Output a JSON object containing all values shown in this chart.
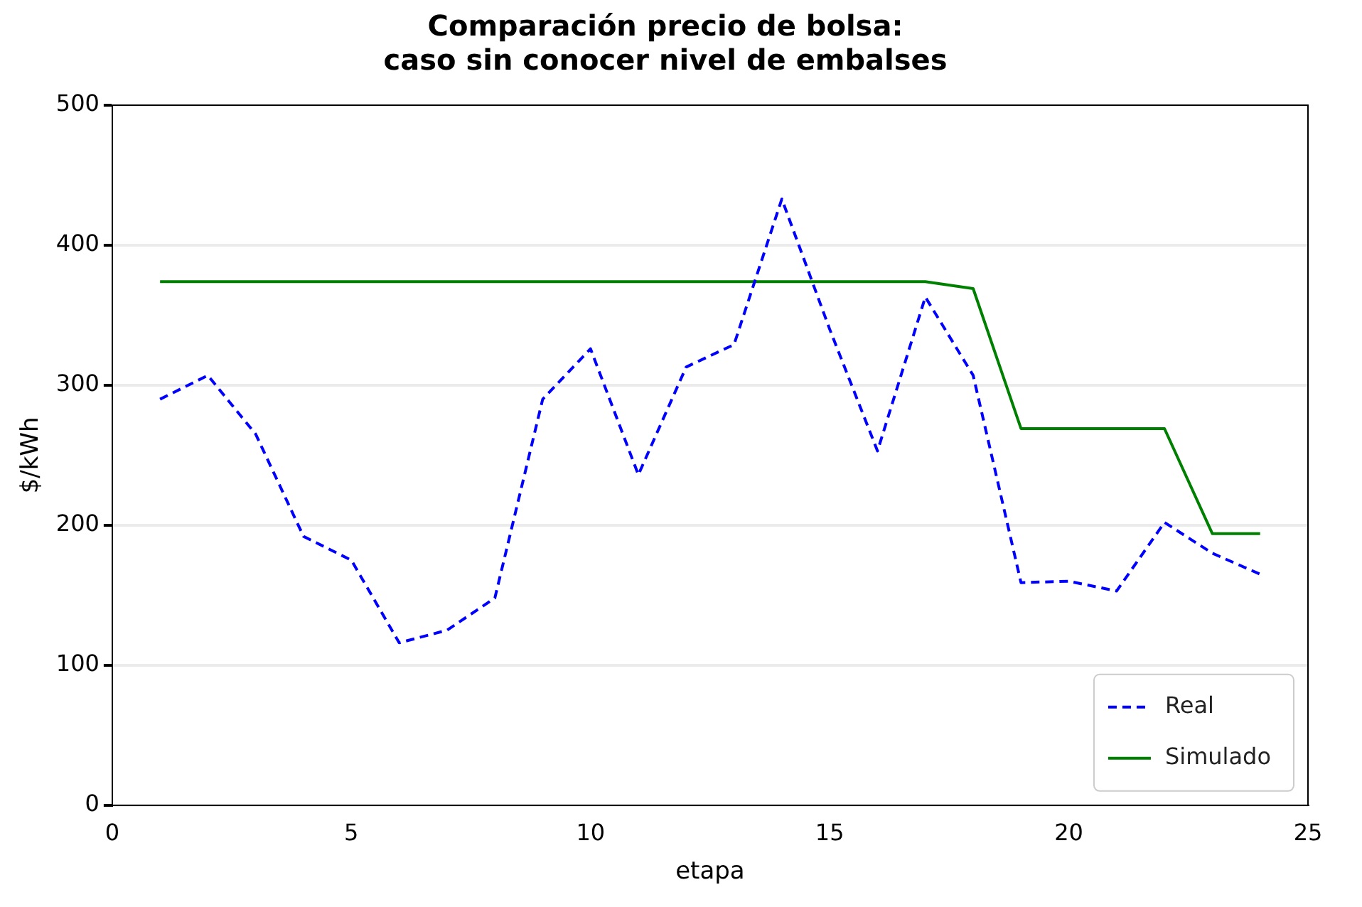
{
  "chart_data": {
    "type": "line",
    "title": "Comparación precio de bolsa:\ncaso sin conocer nivel de embalses",
    "xlabel": "etapa",
    "ylabel": "$/kWh",
    "x": [
      1,
      2,
      3,
      4,
      5,
      6,
      7,
      8,
      9,
      10,
      11,
      12,
      13,
      14,
      15,
      16,
      17,
      18,
      19,
      20,
      21,
      22,
      23,
      24
    ],
    "series": [
      {
        "name": "Real",
        "color": "#0000ff",
        "line_style": "dashed",
        "values": [
          290,
          307,
          265,
          192,
          175,
          116,
          125,
          148,
          290,
          326,
          236,
          313,
          329,
          433,
          340,
          253,
          363,
          307,
          159,
          160,
          153,
          202,
          180,
          165
        ]
      },
      {
        "name": "Simulado",
        "color": "#008000",
        "line_style": "solid",
        "values": [
          374,
          374,
          374,
          374,
          374,
          374,
          374,
          374,
          374,
          374,
          374,
          374,
          374,
          374,
          374,
          374,
          374,
          369,
          269,
          269,
          269,
          269,
          194,
          194
        ]
      }
    ],
    "xlim": [
      0,
      25
    ],
    "xticks": [
      0,
      5,
      10,
      15,
      20,
      25
    ],
    "ylim": [
      0,
      500
    ],
    "yticks": [
      0,
      100,
      200,
      300,
      400,
      500
    ],
    "grid": "y",
    "legend": "bottom right",
    "marker": "none"
  }
}
